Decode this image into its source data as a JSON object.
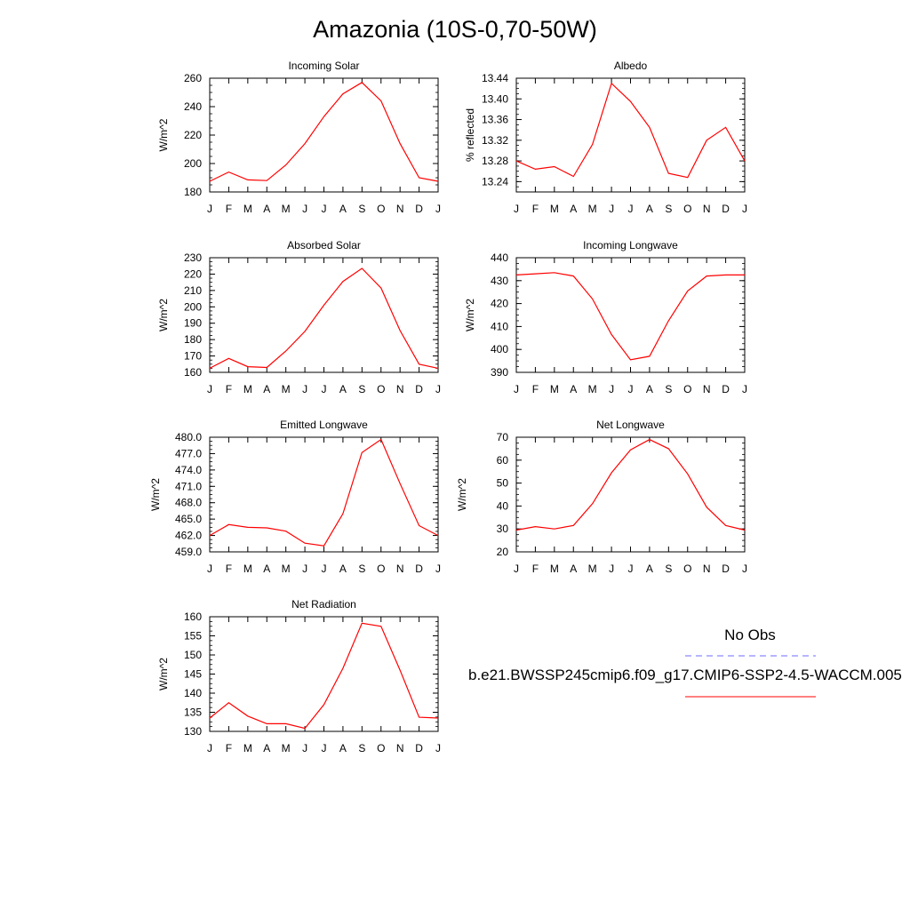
{
  "page": {
    "title": "Amazonia (10S-0,70-50W)"
  },
  "legend": {
    "obs_label": "No Obs",
    "obs_color": "#6e6eff",
    "model_label": "b.e21.BWSSP245cmip6.f09_g17.CMIP6-SSP2-4.5-WACCM.005",
    "model_color": "#ff0000"
  },
  "chart_data": [
    {
      "type": "line",
      "title": "Incoming Solar",
      "ylabel": "W/m^2",
      "x": [
        "J",
        "F",
        "M",
        "A",
        "M",
        "J",
        "J",
        "A",
        "S",
        "O",
        "N",
        "D",
        "J"
      ],
      "ylim": [
        180,
        260
      ],
      "yticks": [
        "180",
        "200",
        "220",
        "240",
        "260"
      ],
      "series": [
        {
          "values": [
            187.5,
            194,
            188.5,
            188,
            199,
            214,
            233,
            249,
            257,
            244,
            214,
            190,
            187.5
          ]
        }
      ]
    },
    {
      "type": "line",
      "title": "Albedo",
      "ylabel": "% reflected",
      "x": [
        "J",
        "F",
        "M",
        "A",
        "M",
        "J",
        "J",
        "A",
        "S",
        "O",
        "N",
        "D",
        "J"
      ],
      "ylim": [
        13.22,
        13.44
      ],
      "yticks": [
        "13.24",
        "13.28",
        "13.32",
        "13.36",
        "13.40",
        "13.44"
      ],
      "series": [
        {
          "values": [
            13.28,
            13.264,
            13.269,
            13.25,
            13.312,
            13.43,
            13.395,
            13.345,
            13.256,
            13.248,
            13.32,
            13.345,
            13.28
          ]
        }
      ]
    },
    {
      "type": "line",
      "title": "Absorbed Solar",
      "ylabel": "W/m^2",
      "x": [
        "J",
        "F",
        "M",
        "A",
        "M",
        "J",
        "J",
        "A",
        "S",
        "O",
        "N",
        "D",
        "J"
      ],
      "ylim": [
        160,
        230
      ],
      "yticks": [
        "160",
        "170",
        "180",
        "190",
        "200",
        "210",
        "220",
        "230"
      ],
      "series": [
        {
          "values": [
            162.5,
            168.5,
            163.5,
            163,
            173,
            185,
            201,
            215.5,
            223.5,
            211.5,
            185.5,
            165,
            162.5
          ]
        }
      ]
    },
    {
      "type": "line",
      "title": "Incoming Longwave",
      "ylabel": "W/m^2",
      "x": [
        "J",
        "F",
        "M",
        "A",
        "M",
        "J",
        "J",
        "A",
        "S",
        "O",
        "N",
        "D",
        "J"
      ],
      "ylim": [
        390,
        440
      ],
      "yticks": [
        "390",
        "400",
        "410",
        "420",
        "430",
        "440"
      ],
      "series": [
        {
          "values": [
            432.5,
            433,
            433.5,
            432,
            422,
            406.5,
            395.5,
            397,
            412.5,
            425.5,
            432,
            432.5,
            432.5
          ]
        }
      ]
    },
    {
      "type": "line",
      "title": "Emitted Longwave",
      "ylabel": "W/m^2",
      "x": [
        "J",
        "F",
        "M",
        "A",
        "M",
        "J",
        "J",
        "A",
        "S",
        "O",
        "N",
        "D",
        "J"
      ],
      "ylim": [
        459,
        480
      ],
      "yticks": [
        "459.0",
        "462.0",
        "465.0",
        "468.0",
        "471.0",
        "474.0",
        "477.0",
        "480.0"
      ],
      "series": [
        {
          "values": [
            462,
            464,
            463.5,
            463.4,
            462.8,
            460.6,
            460.1,
            466,
            477.2,
            479.6,
            471.5,
            463.8,
            462
          ]
        }
      ]
    },
    {
      "type": "line",
      "title": "Net Longwave",
      "ylabel": "W/m^2",
      "x": [
        "J",
        "F",
        "M",
        "A",
        "M",
        "J",
        "J",
        "A",
        "S",
        "O",
        "N",
        "D",
        "J"
      ],
      "ylim": [
        20,
        70
      ],
      "yticks": [
        "20",
        "30",
        "40",
        "50",
        "60",
        "70"
      ],
      "series": [
        {
          "values": [
            29.5,
            31,
            30,
            31.5,
            41,
            54.5,
            64.5,
            69,
            65,
            54,
            39.5,
            31.5,
            29.5
          ]
        }
      ]
    },
    {
      "type": "line",
      "title": "Net Radiation",
      "ylabel": "W/m^2",
      "x": [
        "J",
        "F",
        "M",
        "A",
        "M",
        "J",
        "J",
        "A",
        "S",
        "O",
        "N",
        "D",
        "J"
      ],
      "ylim": [
        130,
        160
      ],
      "yticks": [
        "130",
        "135",
        "140",
        "145",
        "150",
        "155",
        "160"
      ],
      "series": [
        {
          "values": [
            133.5,
            137.5,
            134,
            132,
            132,
            130.8,
            137,
            146.5,
            158.3,
            157.5,
            146,
            133.7,
            133.5
          ]
        }
      ]
    }
  ]
}
